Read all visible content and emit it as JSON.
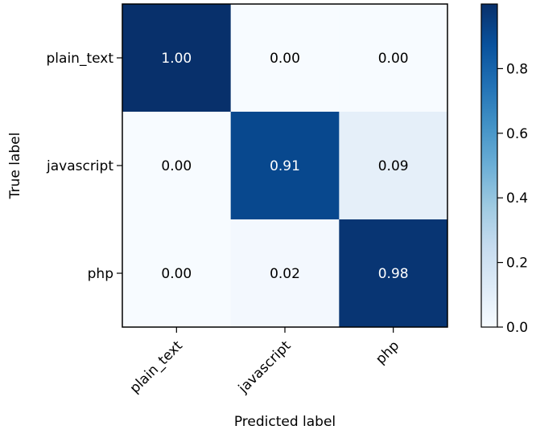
{
  "chart_data": {
    "type": "heatmap",
    "title": "",
    "xlabel": "Predicted label",
    "ylabel": "True label",
    "x_categories": [
      "plain_text",
      "javascript",
      "php"
    ],
    "y_categories": [
      "plain_text",
      "javascript",
      "php"
    ],
    "values": [
      [
        1.0,
        0.0,
        0.0
      ],
      [
        0.0,
        0.91,
        0.09
      ],
      [
        0.0,
        0.02,
        0.98
      ]
    ],
    "cell_labels": [
      [
        "1.00",
        "0.00",
        "0.00"
      ],
      [
        "0.00",
        "0.91",
        "0.09"
      ],
      [
        "0.00",
        "0.02",
        "0.98"
      ]
    ],
    "colormap": "Blues",
    "color_low": "#f7fbff",
    "color_high": "#08306b",
    "text_color_dark_cells": "#ffffff",
    "text_color_light_cells": "#000000",
    "colorbar": {
      "range": [
        0.0,
        1.0
      ],
      "ticks": [
        0.0,
        0.2,
        0.4,
        0.6,
        0.8
      ],
      "tick_labels": [
        "0.0",
        "0.2",
        "0.4",
        "0.6",
        "0.8"
      ]
    },
    "grid": false,
    "legend": "colorbar-right"
  }
}
